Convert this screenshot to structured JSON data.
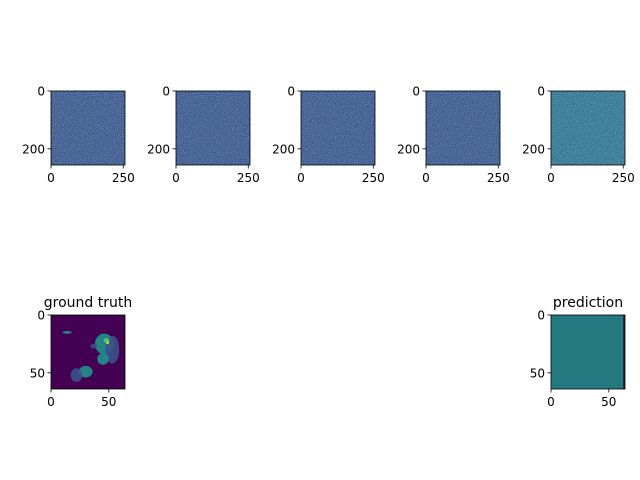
{
  "chart_data": [
    {
      "type": "heatmap",
      "title": "",
      "xlim": [
        0,
        256
      ],
      "ylim": [
        256,
        0
      ],
      "xticks": [
        0,
        250
      ],
      "yticks": [
        0,
        200
      ],
      "xticklabels": [
        "0",
        "250"
      ],
      "yticklabels": [
        "0",
        "200"
      ],
      "colormap": "viridis",
      "content": "noise"
    },
    {
      "type": "heatmap",
      "title": "",
      "xlim": [
        0,
        256
      ],
      "ylim": [
        256,
        0
      ],
      "xticks": [
        0,
        250
      ],
      "yticks": [
        0,
        200
      ],
      "xticklabels": [
        "0",
        "250"
      ],
      "yticklabels": [
        "0",
        "200"
      ],
      "colormap": "viridis",
      "content": "noise"
    },
    {
      "type": "heatmap",
      "title": "",
      "xlim": [
        0,
        256
      ],
      "ylim": [
        256,
        0
      ],
      "xticks": [
        0,
        250
      ],
      "yticks": [
        0,
        200
      ],
      "xticklabels": [
        "0",
        "250"
      ],
      "yticklabels": [
        "0",
        "200"
      ],
      "colormap": "viridis",
      "content": "noise"
    },
    {
      "type": "heatmap",
      "title": "",
      "xlim": [
        0,
        256
      ],
      "ylim": [
        256,
        0
      ],
      "xticks": [
        0,
        250
      ],
      "yticks": [
        0,
        200
      ],
      "xticklabels": [
        "0",
        "250"
      ],
      "yticklabels": [
        "0",
        "200"
      ],
      "colormap": "viridis",
      "content": "noise"
    },
    {
      "type": "heatmap",
      "title": "",
      "xlim": [
        0,
        256
      ],
      "ylim": [
        256,
        0
      ],
      "xticks": [
        0,
        250
      ],
      "yticks": [
        0,
        200
      ],
      "xticklabels": [
        "0",
        "250"
      ],
      "yticklabels": [
        "0",
        "200"
      ],
      "colormap": "viridis",
      "content": "noise"
    },
    {
      "type": "heatmap",
      "title": "ground truth",
      "xlim": [
        0,
        64
      ],
      "ylim": [
        64,
        0
      ],
      "xticks": [
        0,
        50
      ],
      "yticks": [
        0,
        50
      ],
      "xticklabels": [
        "0",
        "50"
      ],
      "yticklabels": [
        "0",
        "50"
      ],
      "colormap": "viridis",
      "content": "sparse blobs on low background"
    },
    {
      "type": "heatmap",
      "title": "prediction",
      "xlim": [
        0,
        64
      ],
      "ylim": [
        64,
        0
      ],
      "xticks": [
        0,
        50
      ],
      "yticks": [
        0,
        50
      ],
      "xticklabels": [
        "0",
        "50"
      ],
      "yticklabels": [
        "0",
        "50"
      ],
      "colormap": "viridis",
      "content": "uniform"
    }
  ],
  "colors": {
    "viridis_low": "#440154",
    "viridis_blue": "#3b528b",
    "viridis_teal": "#21918c",
    "viridis_green": "#5ec962",
    "viridis_high": "#fde725",
    "uniform_teal": "#24797f"
  }
}
